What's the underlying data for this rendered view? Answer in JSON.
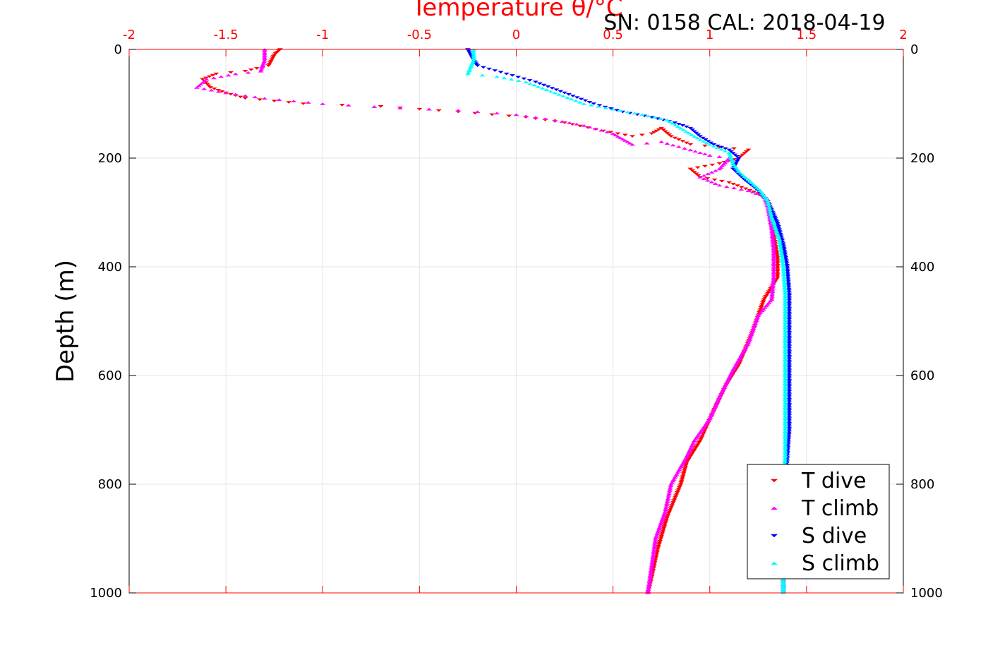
{
  "chart_data": {
    "type": "scatter",
    "title": "SN: 0158  CAL: 2018-04-19",
    "top_axis_label": "Temperature θ/°C",
    "ylabel": "Depth (m)",
    "xlim": [
      -2,
      2
    ],
    "ylim": [
      0,
      1000
    ],
    "y_reversed": true,
    "x_ticks": [
      "-2",
      "-1.5",
      "-1",
      "-0.5",
      "0",
      "0.5",
      "1",
      "1.5",
      "2"
    ],
    "y_ticks": [
      "0",
      "200",
      "400",
      "600",
      "800",
      "1000"
    ],
    "grid": true,
    "legend_position": "bottom-right",
    "colors": {
      "t_dive": "#ff0000",
      "t_climb": "#ff00ff",
      "s_dive": "#0000ff",
      "s_climb": "#00ffff",
      "axis_top": "#ff0000"
    },
    "series": [
      {
        "name": "T dive",
        "marker": "triangle-down",
        "color": "#ff0000",
        "points": [
          [
            -1.22,
            0
          ],
          [
            -1.25,
            10
          ],
          [
            -1.28,
            30
          ],
          [
            -1.4,
            40
          ],
          [
            -1.55,
            45
          ],
          [
            -1.62,
            55
          ],
          [
            -1.58,
            70
          ],
          [
            -1.5,
            80
          ],
          [
            -1.4,
            90
          ],
          [
            -1.1,
            100
          ],
          [
            -0.7,
            105
          ],
          [
            -0.3,
            115
          ],
          [
            0.05,
            125
          ],
          [
            0.25,
            135
          ],
          [
            0.45,
            150
          ],
          [
            0.6,
            160
          ],
          [
            0.7,
            155
          ],
          [
            0.75,
            145
          ],
          [
            0.8,
            160
          ],
          [
            0.9,
            175
          ],
          [
            1.05,
            180
          ],
          [
            1.2,
            185
          ],
          [
            1.15,
            200
          ],
          [
            1.05,
            210
          ],
          [
            0.9,
            220
          ],
          [
            0.95,
            235
          ],
          [
            1.1,
            245
          ],
          [
            1.25,
            265
          ],
          [
            1.3,
            280
          ],
          [
            1.32,
            320
          ],
          [
            1.35,
            380
          ],
          [
            1.35,
            420
          ],
          [
            1.28,
            460
          ],
          [
            1.22,
            520
          ],
          [
            1.15,
            580
          ],
          [
            1.08,
            620
          ],
          [
            1.0,
            680
          ],
          [
            0.95,
            720
          ],
          [
            0.88,
            760
          ],
          [
            0.85,
            800
          ],
          [
            0.78,
            860
          ],
          [
            0.73,
            920
          ],
          [
            0.7,
            970
          ],
          [
            0.68,
            1000
          ]
        ]
      },
      {
        "name": "T climb",
        "marker": "triangle-up",
        "color": "#ff00ff",
        "points": [
          [
            -1.3,
            0
          ],
          [
            -1.3,
            20
          ],
          [
            -1.32,
            40
          ],
          [
            -1.45,
            45
          ],
          [
            -1.6,
            55
          ],
          [
            -1.65,
            70
          ],
          [
            -1.5,
            80
          ],
          [
            -1.3,
            90
          ],
          [
            -1.0,
            100
          ],
          [
            -0.6,
            108
          ],
          [
            -0.3,
            112
          ],
          [
            0.0,
            120
          ],
          [
            0.2,
            130
          ],
          [
            0.35,
            140
          ],
          [
            0.5,
            155
          ],
          [
            0.55,
            165
          ],
          [
            0.6,
            175
          ],
          [
            0.75,
            170
          ],
          [
            0.9,
            185
          ],
          [
            1.0,
            195
          ],
          [
            1.1,
            200
          ],
          [
            1.05,
            220
          ],
          [
            0.95,
            235
          ],
          [
            1.05,
            250
          ],
          [
            1.2,
            260
          ],
          [
            1.28,
            270
          ],
          [
            1.3,
            290
          ],
          [
            1.32,
            330
          ],
          [
            1.33,
            370
          ],
          [
            1.33,
            420
          ],
          [
            1.32,
            460
          ],
          [
            1.25,
            490
          ],
          [
            1.2,
            540
          ],
          [
            1.12,
            590
          ],
          [
            1.05,
            640
          ],
          [
            1.0,
            680
          ],
          [
            0.92,
            720
          ],
          [
            0.88,
            750
          ],
          [
            0.8,
            800
          ],
          [
            0.77,
            850
          ],
          [
            0.72,
            900
          ],
          [
            0.7,
            950
          ],
          [
            0.68,
            1000
          ]
        ]
      },
      {
        "name": "S dive",
        "marker": "triangle-down",
        "color": "#0000ff",
        "points": [
          [
            -0.25,
            0
          ],
          [
            -0.22,
            20
          ],
          [
            -0.2,
            30
          ],
          [
            -0.05,
            45
          ],
          [
            0.1,
            60
          ],
          [
            0.25,
            80
          ],
          [
            0.4,
            100
          ],
          [
            0.55,
            115
          ],
          [
            0.7,
            125
          ],
          [
            0.82,
            135
          ],
          [
            0.9,
            145
          ],
          [
            0.95,
            160
          ],
          [
            1.02,
            175
          ],
          [
            1.1,
            185
          ],
          [
            1.15,
            200
          ],
          [
            1.12,
            220
          ],
          [
            1.18,
            240
          ],
          [
            1.25,
            260
          ],
          [
            1.3,
            280
          ],
          [
            1.35,
            320
          ],
          [
            1.38,
            360
          ],
          [
            1.4,
            400
          ],
          [
            1.41,
            450
          ],
          [
            1.41,
            500
          ],
          [
            1.41,
            550
          ],
          [
            1.41,
            600
          ],
          [
            1.41,
            650
          ],
          [
            1.41,
            700
          ],
          [
            1.4,
            750
          ],
          [
            1.39,
            800
          ],
          [
            1.39,
            850
          ],
          [
            1.38,
            900
          ],
          [
            1.38,
            950
          ],
          [
            1.38,
            1000
          ]
        ]
      },
      {
        "name": "S climb",
        "marker": "triangle-up",
        "color": "#00ffff",
        "points": [
          [
            -0.22,
            0
          ],
          [
            -0.22,
            20
          ],
          [
            -0.25,
            45
          ],
          [
            -0.1,
            50
          ],
          [
            0.05,
            60
          ],
          [
            0.2,
            80
          ],
          [
            0.35,
            100
          ],
          [
            0.5,
            110
          ],
          [
            0.65,
            120
          ],
          [
            0.78,
            130
          ],
          [
            0.85,
            145
          ],
          [
            0.92,
            160
          ],
          [
            1.0,
            175
          ],
          [
            1.1,
            190
          ],
          [
            1.12,
            210
          ],
          [
            1.15,
            225
          ],
          [
            1.2,
            240
          ],
          [
            1.26,
            260
          ],
          [
            1.3,
            280
          ],
          [
            1.32,
            310
          ],
          [
            1.36,
            350
          ],
          [
            1.38,
            400
          ],
          [
            1.39,
            450
          ],
          [
            1.39,
            500
          ],
          [
            1.39,
            550
          ],
          [
            1.39,
            600
          ],
          [
            1.39,
            650
          ],
          [
            1.39,
            700
          ],
          [
            1.39,
            750
          ],
          [
            1.38,
            800
          ],
          [
            1.38,
            850
          ],
          [
            1.38,
            900
          ],
          [
            1.38,
            950
          ],
          [
            1.38,
            1000
          ]
        ]
      }
    ]
  }
}
